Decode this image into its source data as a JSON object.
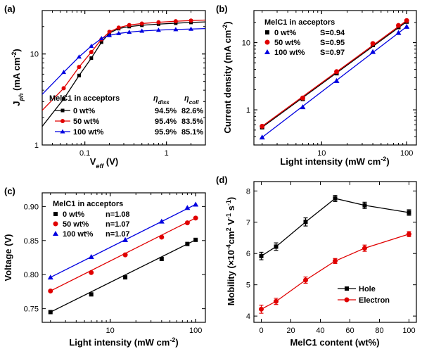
{
  "chart_data": [
    {
      "panel": "(a)",
      "type": "line",
      "xlabel": "V_eff (V)",
      "ylabel": "J_ph (mA cm-2)",
      "xscale": "log",
      "yscale": "log",
      "xlim": [
        0.03,
        3
      ],
      "ylim": [
        1,
        30
      ],
      "xticks": [
        "0.1",
        "1"
      ],
      "yticks": [
        "1",
        "10"
      ],
      "legend_title": "MelC1 in acceptors",
      "table_headers": [
        "η_diss",
        "η_coll"
      ],
      "legend_placement": "bottom-right",
      "series": [
        {
          "name": "0 wt%",
          "color": "#000000",
          "marker": "square",
          "eta_diss": "94.5%",
          "eta_coll": "82.6%",
          "x": [
            0.03,
            0.055,
            0.085,
            0.12,
            0.16,
            0.2,
            0.26,
            0.35,
            0.5,
            0.8,
            1.3,
            2.0,
            3.0
          ],
          "y": [
            1.6,
            3.2,
            5.8,
            9.0,
            13.5,
            17.0,
            19.0,
            20.0,
            20.7,
            21.3,
            21.8,
            22.2,
            22.5
          ]
        },
        {
          "name": "50 wt%",
          "color": "#e00000",
          "marker": "circle",
          "eta_diss": "95.4%",
          "eta_coll": "83.5%",
          "x": [
            0.03,
            0.055,
            0.085,
            0.12,
            0.16,
            0.2,
            0.26,
            0.35,
            0.5,
            0.8,
            1.3,
            2.0,
            3.0
          ],
          "y": [
            2.4,
            4.2,
            7.2,
            10.5,
            14.5,
            17.5,
            19.5,
            20.8,
            21.6,
            22.3,
            22.9,
            23.3,
            23.6
          ]
        },
        {
          "name": "100 wt%",
          "color": "#0000e0",
          "marker": "triangle",
          "eta_diss": "95.9%",
          "eta_coll": "85.1%",
          "x": [
            0.03,
            0.055,
            0.085,
            0.12,
            0.16,
            0.2,
            0.26,
            0.35,
            0.5,
            0.8,
            1.3,
            2.0,
            3.0
          ],
          "y": [
            3.6,
            6.3,
            9.3,
            12.2,
            14.8,
            16.0,
            16.8,
            17.4,
            17.9,
            18.3,
            18.6,
            18.8,
            19.0
          ]
        }
      ]
    },
    {
      "panel": "(b)",
      "type": "scatter",
      "xlabel": "Light intensity (mW cm-2)",
      "ylabel": "Current density (mA cm-2)",
      "xscale": "log",
      "yscale": "log",
      "xlim": [
        1.6,
        130
      ],
      "ylim": [
        0.3,
        30
      ],
      "xticks": [
        "10",
        "100"
      ],
      "yticks": [
        "1",
        "10"
      ],
      "legend_title": "MelC1 in acceptors",
      "legend_placement": "top-left",
      "series": [
        {
          "name": "0 wt%",
          "fit": "S=0.94",
          "color": "#000000",
          "marker": "square",
          "x": [
            2,
            6,
            15,
            40,
            80,
            100
          ],
          "y": [
            0.55,
            1.45,
            3.5,
            9.2,
            17.0,
            20.5
          ]
        },
        {
          "name": "50 wt%",
          "fit": "S=0.95",
          "color": "#e00000",
          "marker": "circle",
          "x": [
            2,
            6,
            15,
            40,
            80,
            100
          ],
          "y": [
            0.57,
            1.5,
            3.7,
            9.7,
            18.0,
            21.3
          ]
        },
        {
          "name": "100 wt%",
          "fit": "S=0.97",
          "color": "#0000e0",
          "marker": "triangle",
          "x": [
            2,
            6,
            15,
            40,
            80,
            100
          ],
          "y": [
            0.39,
            1.1,
            2.7,
            7.3,
            14.0,
            17.3
          ]
        }
      ]
    },
    {
      "panel": "(c)",
      "type": "scatter",
      "xlabel": "Light intensity (mW cm-2)",
      "ylabel": "Voltage (V)",
      "xscale": "log",
      "yscale": "linear",
      "xlim": [
        1.6,
        130
      ],
      "ylim": [
        0.73,
        0.92
      ],
      "xticks": [
        "10",
        "100"
      ],
      "yticks": [
        "0.75",
        "0.80",
        "0.85",
        "0.90"
      ],
      "legend_title": "MelC1 in acceptors",
      "legend_placement": "top-left",
      "series": [
        {
          "name": "0 wt%",
          "fit": "n=1.08",
          "color": "#000000",
          "marker": "square",
          "x": [
            2,
            6,
            15,
            40,
            80,
            100
          ],
          "y": [
            0.745,
            0.771,
            0.796,
            0.823,
            0.845,
            0.851
          ]
        },
        {
          "name": "50 wt%",
          "fit": "n=1.07",
          "color": "#e00000",
          "marker": "circle",
          "x": [
            2,
            6,
            15,
            40,
            80,
            100
          ],
          "y": [
            0.776,
            0.803,
            0.829,
            0.855,
            0.876,
            0.883
          ]
        },
        {
          "name": "100 wt%",
          "fit": "n=1.07",
          "color": "#0000e0",
          "marker": "triangle",
          "x": [
            2,
            6,
            15,
            40,
            80,
            100
          ],
          "y": [
            0.796,
            0.826,
            0.851,
            0.878,
            0.898,
            0.903
          ]
        }
      ]
    },
    {
      "panel": "(d)",
      "type": "line",
      "xlabel": "MelC1 content (wt%)",
      "ylabel": "Mobility (×10-4 cm2 V-1 s-1)",
      "xscale": "linear",
      "yscale": "linear",
      "xlim": [
        -5,
        105
      ],
      "ylim": [
        3.8,
        8.3
      ],
      "xticks": [
        "0",
        "20",
        "40",
        "60",
        "80",
        "100"
      ],
      "yticks": [
        "4",
        "5",
        "6",
        "7",
        "8"
      ],
      "legend_placement": "bottom-right",
      "series": [
        {
          "name": "Hole",
          "color": "#000000",
          "marker": "square",
          "x": [
            0,
            10,
            30,
            50,
            70,
            100
          ],
          "y": [
            5.92,
            6.22,
            7.01,
            7.76,
            7.54,
            7.31
          ],
          "err": [
            0.12,
            0.12,
            0.13,
            0.1,
            0.1,
            0.09
          ]
        },
        {
          "name": "Electron",
          "color": "#e00000",
          "marker": "circle",
          "x": [
            0,
            10,
            30,
            50,
            70,
            100
          ],
          "y": [
            4.22,
            4.47,
            5.15,
            5.76,
            6.17,
            6.62
          ],
          "err": [
            0.13,
            0.1,
            0.1,
            0.08,
            0.1,
            0.08
          ]
        }
      ]
    }
  ]
}
